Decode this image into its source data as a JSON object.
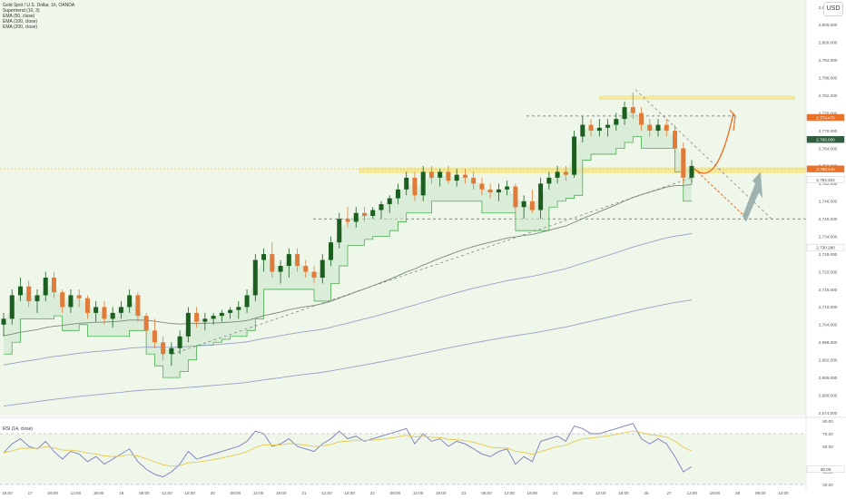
{
  "header": {
    "title": "Gold Spot / U.S. Dollar, 1h, OANDA",
    "indicators": [
      "Supertrend (10, 3)",
      "EMA (50, close)",
      "EMA (100, close)",
      "EMA (200, close)"
    ],
    "currency_button": "USD"
  },
  "rsi_panel": {
    "label": "RSI (14, close)",
    "levels": [
      "80.00",
      "70.00",
      "60.00",
      "40.00",
      "30.00"
    ],
    "current_label": "40.00"
  },
  "colors": {
    "up": "#26a69a",
    "up_body": "#1b5e20",
    "down": "#e07b39",
    "supertrend_fill": "#c8e6c9",
    "zone": "#f5e27a",
    "ema_slow": "#9aa0c8",
    "ema_fast": "#7a8a7a",
    "rsi": "#7b7bbd",
    "arrow_orange": "#e8722a",
    "arrow_blue": "#8fa6a6"
  },
  "chart_data": {
    "type": "candlestick",
    "title": "Gold Spot / U.S. Dollar, 1h, OANDA",
    "price_axis": [
      "2,812.000",
      "2,806.000",
      "2,800.000",
      "2,794.000",
      "2,788.000",
      "2,782.000",
      "2,776.000",
      "2,770.000",
      "2,764.000",
      "2,758.000",
      "2,752.000",
      "2,746.000",
      "2,740.000",
      "2,734.000",
      "2,728.000",
      "2,722.000",
      "2,716.000",
      "2,710.000",
      "2,704.000",
      "2,698.000",
      "2,692.000",
      "2,686.000",
      "2,680.000",
      "2,674.000"
    ],
    "price_labels": {
      "current": "2,758.440",
      "level_upper": "2,774.470",
      "level_mid": "2,766.000",
      "ema": "2,753.324",
      "ema_slow": "2,730.280"
    },
    "time_axis": [
      "16:00",
      "17",
      "06:00",
      "12:00",
      "18:00",
      "18",
      "06:00",
      "12:00",
      "18:00",
      "20",
      "06:00",
      "12:00",
      "18:00",
      "21",
      "12:00",
      "18:00",
      "22",
      "06:00",
      "12:00",
      "18:00",
      "23",
      "06:00",
      "12:00",
      "18:00",
      "24",
      "06:00",
      "12:00",
      "18:00",
      "25",
      "27",
      "12:00",
      "18:00",
      "28",
      "06:00",
      "12:00"
    ],
    "zones": [
      {
        "name": "resistance",
        "low": 2780.5,
        "high": 2782.0
      },
      {
        "name": "support",
        "low": 2755.5,
        "high": 2757.5
      }
    ],
    "dashed_levels": [
      2775.0,
      2740.0
    ],
    "series_candles": [
      [
        2704,
        2708,
        2700,
        2706
      ],
      [
        2706,
        2716,
        2704,
        2714
      ],
      [
        2714,
        2720,
        2712,
        2717
      ],
      [
        2717,
        2719,
        2710,
        2712
      ],
      [
        2712,
        2716,
        2708,
        2714
      ],
      [
        2714,
        2722,
        2712,
        2720
      ],
      [
        2720,
        2722,
        2713,
        2715
      ],
      [
        2715,
        2716,
        2708,
        2710
      ],
      [
        2710,
        2716,
        2708,
        2714
      ],
      [
        2714,
        2716,
        2710,
        2713
      ],
      [
        2713,
        2714,
        2706,
        2708
      ],
      [
        2708,
        2712,
        2705,
        2710
      ],
      [
        2710,
        2712,
        2704,
        2706
      ],
      [
        2706,
        2710,
        2703,
        2708
      ],
      [
        2708,
        2712,
        2706,
        2710
      ],
      [
        2710,
        2716,
        2708,
        2714
      ],
      [
        2714,
        2715,
        2705,
        2707
      ],
      [
        2707,
        2708,
        2700,
        2702
      ],
      [
        2702,
        2706,
        2696,
        2698
      ],
      [
        2698,
        2700,
        2692,
        2694
      ],
      [
        2694,
        2698,
        2690,
        2696
      ],
      [
        2696,
        2702,
        2694,
        2700
      ],
      [
        2700,
        2710,
        2698,
        2708
      ],
      [
        2708,
        2710,
        2703,
        2705
      ],
      [
        2705,
        2708,
        2702,
        2706
      ],
      [
        2706,
        2708,
        2704,
        2707
      ],
      [
        2707,
        2709,
        2705,
        2708
      ],
      [
        2708,
        2710,
        2706,
        2709
      ],
      [
        2709,
        2712,
        2706,
        2710
      ],
      [
        2710,
        2716,
        2708,
        2714
      ],
      [
        2714,
        2728,
        2712,
        2726
      ],
      [
        2726,
        2730,
        2722,
        2728
      ],
      [
        2728,
        2732,
        2720,
        2722
      ],
      [
        2722,
        2726,
        2718,
        2724
      ],
      [
        2724,
        2730,
        2720,
        2728
      ],
      [
        2728,
        2730,
        2722,
        2724
      ],
      [
        2724,
        2726,
        2720,
        2722
      ],
      [
        2722,
        2724,
        2718,
        2720
      ],
      [
        2720,
        2728,
        2718,
        2726
      ],
      [
        2726,
        2734,
        2724,
        2732
      ],
      [
        2732,
        2742,
        2730,
        2740
      ],
      [
        2740,
        2744,
        2737,
        2739
      ],
      [
        2739,
        2744,
        2737,
        2742
      ],
      [
        2742,
        2744,
        2739,
        2741
      ],
      [
        2741,
        2744,
        2740,
        2743
      ],
      [
        2743,
        2746,
        2740,
        2745
      ],
      [
        2745,
        2748,
        2742,
        2747
      ],
      [
        2747,
        2752,
        2745,
        2750
      ],
      [
        2750,
        2756,
        2748,
        2754
      ],
      [
        2754,
        2756,
        2746,
        2748
      ],
      [
        2748,
        2758,
        2746,
        2756
      ],
      [
        2756,
        2758,
        2752,
        2754
      ],
      [
        2754,
        2757,
        2751,
        2756
      ],
      [
        2756,
        2758,
        2752,
        2753
      ],
      [
        2753,
        2757,
        2751,
        2755
      ],
      [
        2755,
        2757,
        2752,
        2754
      ],
      [
        2754,
        2756,
        2750,
        2752
      ],
      [
        2752,
        2754,
        2748,
        2750
      ],
      [
        2750,
        2752,
        2747,
        2749
      ],
      [
        2749,
        2752,
        2746,
        2750
      ],
      [
        2750,
        2753,
        2748,
        2751
      ],
      [
        2751,
        2752,
        2742,
        2744
      ],
      [
        2744,
        2748,
        2740,
        2746
      ],
      [
        2746,
        2750,
        2742,
        2743
      ],
      [
        2743,
        2754,
        2740,
        2752
      ],
      [
        2752,
        2756,
        2750,
        2754
      ],
      [
        2754,
        2758,
        2752,
        2756
      ],
      [
        2756,
        2758,
        2753,
        2755
      ],
      [
        2755,
        2770,
        2754,
        2768
      ],
      [
        2768,
        2775,
        2766,
        2772
      ],
      [
        2772,
        2774,
        2768,
        2770
      ],
      [
        2770,
        2774,
        2768,
        2771
      ],
      [
        2771,
        2774,
        2768,
        2772
      ],
      [
        2772,
        2776,
        2770,
        2774
      ],
      [
        2774,
        2780,
        2772,
        2778
      ],
      [
        2778,
        2783,
        2774,
        2776
      ],
      [
        2776,
        2778,
        2770,
        2772
      ],
      [
        2772,
        2774,
        2768,
        2770
      ],
      [
        2770,
        2774,
        2768,
        2772
      ],
      [
        2772,
        2774,
        2768,
        2770
      ],
      [
        2770,
        2772,
        2762,
        2764
      ],
      [
        2764,
        2766,
        2752,
        2754
      ],
      [
        2754,
        2760,
        2752,
        2758
      ]
    ],
    "rsi_values": [
      55,
      62,
      66,
      60,
      58,
      64,
      56,
      50,
      56,
      54,
      48,
      52,
      46,
      50,
      54,
      58,
      48,
      42,
      38,
      36,
      40,
      46,
      56,
      50,
      52,
      54,
      56,
      58,
      60,
      64,
      72,
      70,
      60,
      62,
      66,
      60,
      58,
      56,
      62,
      66,
      72,
      66,
      68,
      64,
      66,
      68,
      70,
      72,
      74,
      62,
      70,
      64,
      66,
      60,
      64,
      62,
      58,
      54,
      52,
      56,
      58,
      46,
      52,
      48,
      64,
      66,
      68,
      64,
      76,
      74,
      70,
      70,
      72,
      74,
      76,
      78,
      66,
      62,
      66,
      62,
      52,
      40,
      44
    ],
    "rsi_ylim": [
      30,
      80
    ],
    "xlabel": "",
    "ylabel": ""
  }
}
